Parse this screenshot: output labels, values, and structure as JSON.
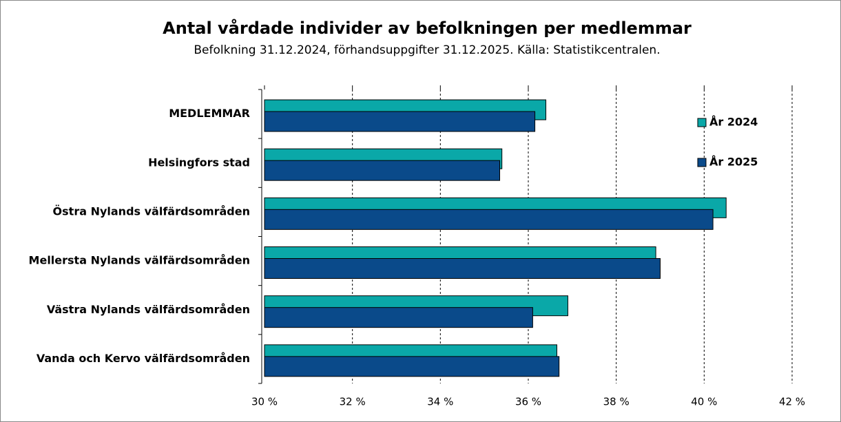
{
  "chart_data": {
    "type": "bar",
    "orientation": "horizontal",
    "title": "Antal vårdade individer av befolkningen per medlemmar",
    "subtitle": "Befolkning 31.12.2024, förhandsuppgifter 31.12.2025. Källa: Statistikcentralen.",
    "categories": [
      "MEDLEMMAR",
      "Helsingfors stad",
      "Östra Nylands välfärdsområden",
      "Mellersta Nylands välfärdsområden",
      "Västra Nylands välfärdsområden",
      "Vanda och Kervo välfärdsområden"
    ],
    "series": [
      {
        "name": "År 2024",
        "color": "#0aa8a8",
        "values": [
          36.4,
          35.4,
          40.5,
          38.9,
          36.9,
          36.65
        ]
      },
      {
        "name": "År 2025",
        "color": "#0a4a8a",
        "values": [
          36.15,
          35.35,
          40.2,
          39.0,
          36.1,
          36.7
        ]
      }
    ],
    "xlim": [
      30,
      42
    ],
    "xticks": [
      {
        "value": 30,
        "label": "30 %"
      },
      {
        "value": 32,
        "label": "32 %"
      },
      {
        "value": 34,
        "label": "34 %"
      },
      {
        "value": 36,
        "label": "36 %"
      },
      {
        "value": 38,
        "label": "38 %"
      },
      {
        "value": 40,
        "label": "40 %"
      },
      {
        "value": 42,
        "label": "42 %"
      }
    ],
    "grid": true,
    "legend": "upper right"
  }
}
